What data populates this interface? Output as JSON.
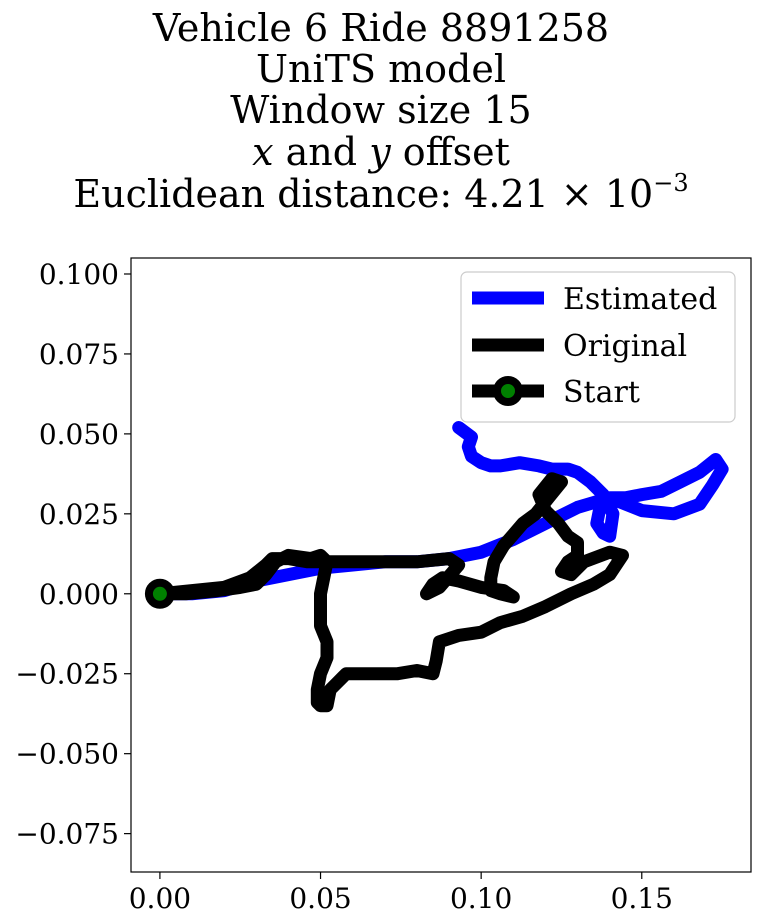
{
  "title": {
    "line1": "Vehicle 6 Ride 8891258",
    "line2": "UniTS model",
    "line3": "Window size 15",
    "line4_var_x": "x",
    "line4_and": "and",
    "line4_var_y": "y",
    "line4_rest": "offset",
    "line5_prefix": "Euclidean distance: 4.21 × 10",
    "line5_exponent": "−3"
  },
  "chart_data": {
    "type": "line",
    "xlim": [
      -0.009,
      0.184
    ],
    "ylim": [
      -0.087,
      0.105
    ],
    "x_ticks": [
      0.0,
      0.05,
      0.1,
      0.15
    ],
    "x_tick_labels": [
      "0.00",
      "0.05",
      "0.10",
      "0.15"
    ],
    "y_ticks": [
      0.1,
      0.075,
      0.05,
      0.025,
      0.0,
      -0.025,
      -0.05,
      -0.075
    ],
    "y_tick_labels": [
      "0.100",
      "0.075",
      "0.050",
      "0.025",
      "0.000",
      "−0.025",
      "−0.050",
      "−0.075"
    ],
    "grid": false,
    "legend_position": "top-right",
    "series": [
      {
        "name": "Estimated",
        "color": "#0000ff",
        "x": [
          0.0,
          0.01,
          0.02,
          0.03,
          0.04,
          0.05,
          0.06,
          0.07,
          0.08,
          0.09,
          0.1,
          0.11,
          0.12,
          0.13,
          0.14,
          0.15,
          0.16,
          0.168,
          0.172,
          0.175,
          0.173,
          0.168,
          0.162,
          0.156,
          0.15,
          0.145,
          0.14,
          0.137,
          0.136,
          0.138,
          0.14,
          0.141,
          0.138,
          0.134,
          0.13,
          0.127,
          0.122,
          0.118,
          0.112,
          0.106,
          0.103,
          0.1,
          0.097,
          0.096,
          0.097,
          0.093
        ],
        "y": [
          0.0,
          0.0,
          0.001,
          0.004,
          0.006,
          0.008,
          0.009,
          0.01,
          0.01,
          0.011,
          0.013,
          0.017,
          0.022,
          0.027,
          0.03,
          0.026,
          0.025,
          0.028,
          0.034,
          0.039,
          0.042,
          0.038,
          0.035,
          0.032,
          0.031,
          0.03,
          0.03,
          0.027,
          0.022,
          0.019,
          0.018,
          0.025,
          0.031,
          0.035,
          0.038,
          0.039,
          0.039,
          0.04,
          0.041,
          0.04,
          0.04,
          0.041,
          0.043,
          0.046,
          0.049,
          0.052
        ]
      },
      {
        "name": "Original",
        "color": "#000000",
        "x": [
          0.0,
          0.008,
          0.018,
          0.025,
          0.03,
          0.033,
          0.036,
          0.04,
          0.047,
          0.05,
          0.052,
          0.05,
          0.05,
          0.052,
          0.052,
          0.05,
          0.049,
          0.049,
          0.05,
          0.052,
          0.053,
          0.055,
          0.057,
          0.058,
          0.062,
          0.068,
          0.074,
          0.08,
          0.085,
          0.086,
          0.087,
          0.093,
          0.1,
          0.106,
          0.113,
          0.12,
          0.128,
          0.135,
          0.14,
          0.144,
          0.14,
          0.132,
          0.128,
          0.125,
          0.127,
          0.13,
          0.13,
          0.127,
          0.124,
          0.12,
          0.118,
          0.122,
          0.125,
          0.121,
          0.117,
          0.113,
          0.107,
          0.104,
          0.103,
          0.103,
          0.106,
          0.11,
          0.107,
          0.1,
          0.093,
          0.088,
          0.085,
          0.083,
          0.087,
          0.093,
          0.09,
          0.08,
          0.07,
          0.06,
          0.053,
          0.046,
          0.04,
          0.035,
          0.033,
          0.028,
          0.02,
          0.01,
          0.0
        ],
        "y": [
          0.0,
          0.0,
          0.001,
          0.002,
          0.003,
          0.006,
          0.01,
          0.012,
          0.011,
          0.012,
          0.01,
          0.0,
          -0.01,
          -0.015,
          -0.02,
          -0.025,
          -0.03,
          -0.034,
          -0.035,
          -0.035,
          -0.03,
          -0.028,
          -0.026,
          -0.025,
          -0.025,
          -0.025,
          -0.025,
          -0.024,
          -0.025,
          -0.021,
          -0.015,
          -0.013,
          -0.012,
          -0.009,
          -0.007,
          -0.004,
          0.0,
          0.003,
          0.006,
          0.012,
          0.013,
          0.01,
          0.006,
          0.007,
          0.01,
          0.012,
          0.016,
          0.018,
          0.022,
          0.026,
          0.031,
          0.036,
          0.035,
          0.03,
          0.025,
          0.022,
          0.015,
          0.01,
          0.005,
          0.001,
          0.0,
          -0.001,
          0.001,
          0.002,
          0.004,
          0.005,
          0.003,
          0.0,
          0.002,
          0.009,
          0.011,
          0.01,
          0.01,
          0.01,
          0.01,
          0.01,
          0.011,
          0.011,
          0.009,
          0.005,
          0.002,
          0.001,
          0.0
        ]
      }
    ],
    "start": {
      "name": "Start",
      "x": 0.0,
      "y": 0.0,
      "marker_face": "#008000",
      "marker_edge": "#000000"
    }
  }
}
